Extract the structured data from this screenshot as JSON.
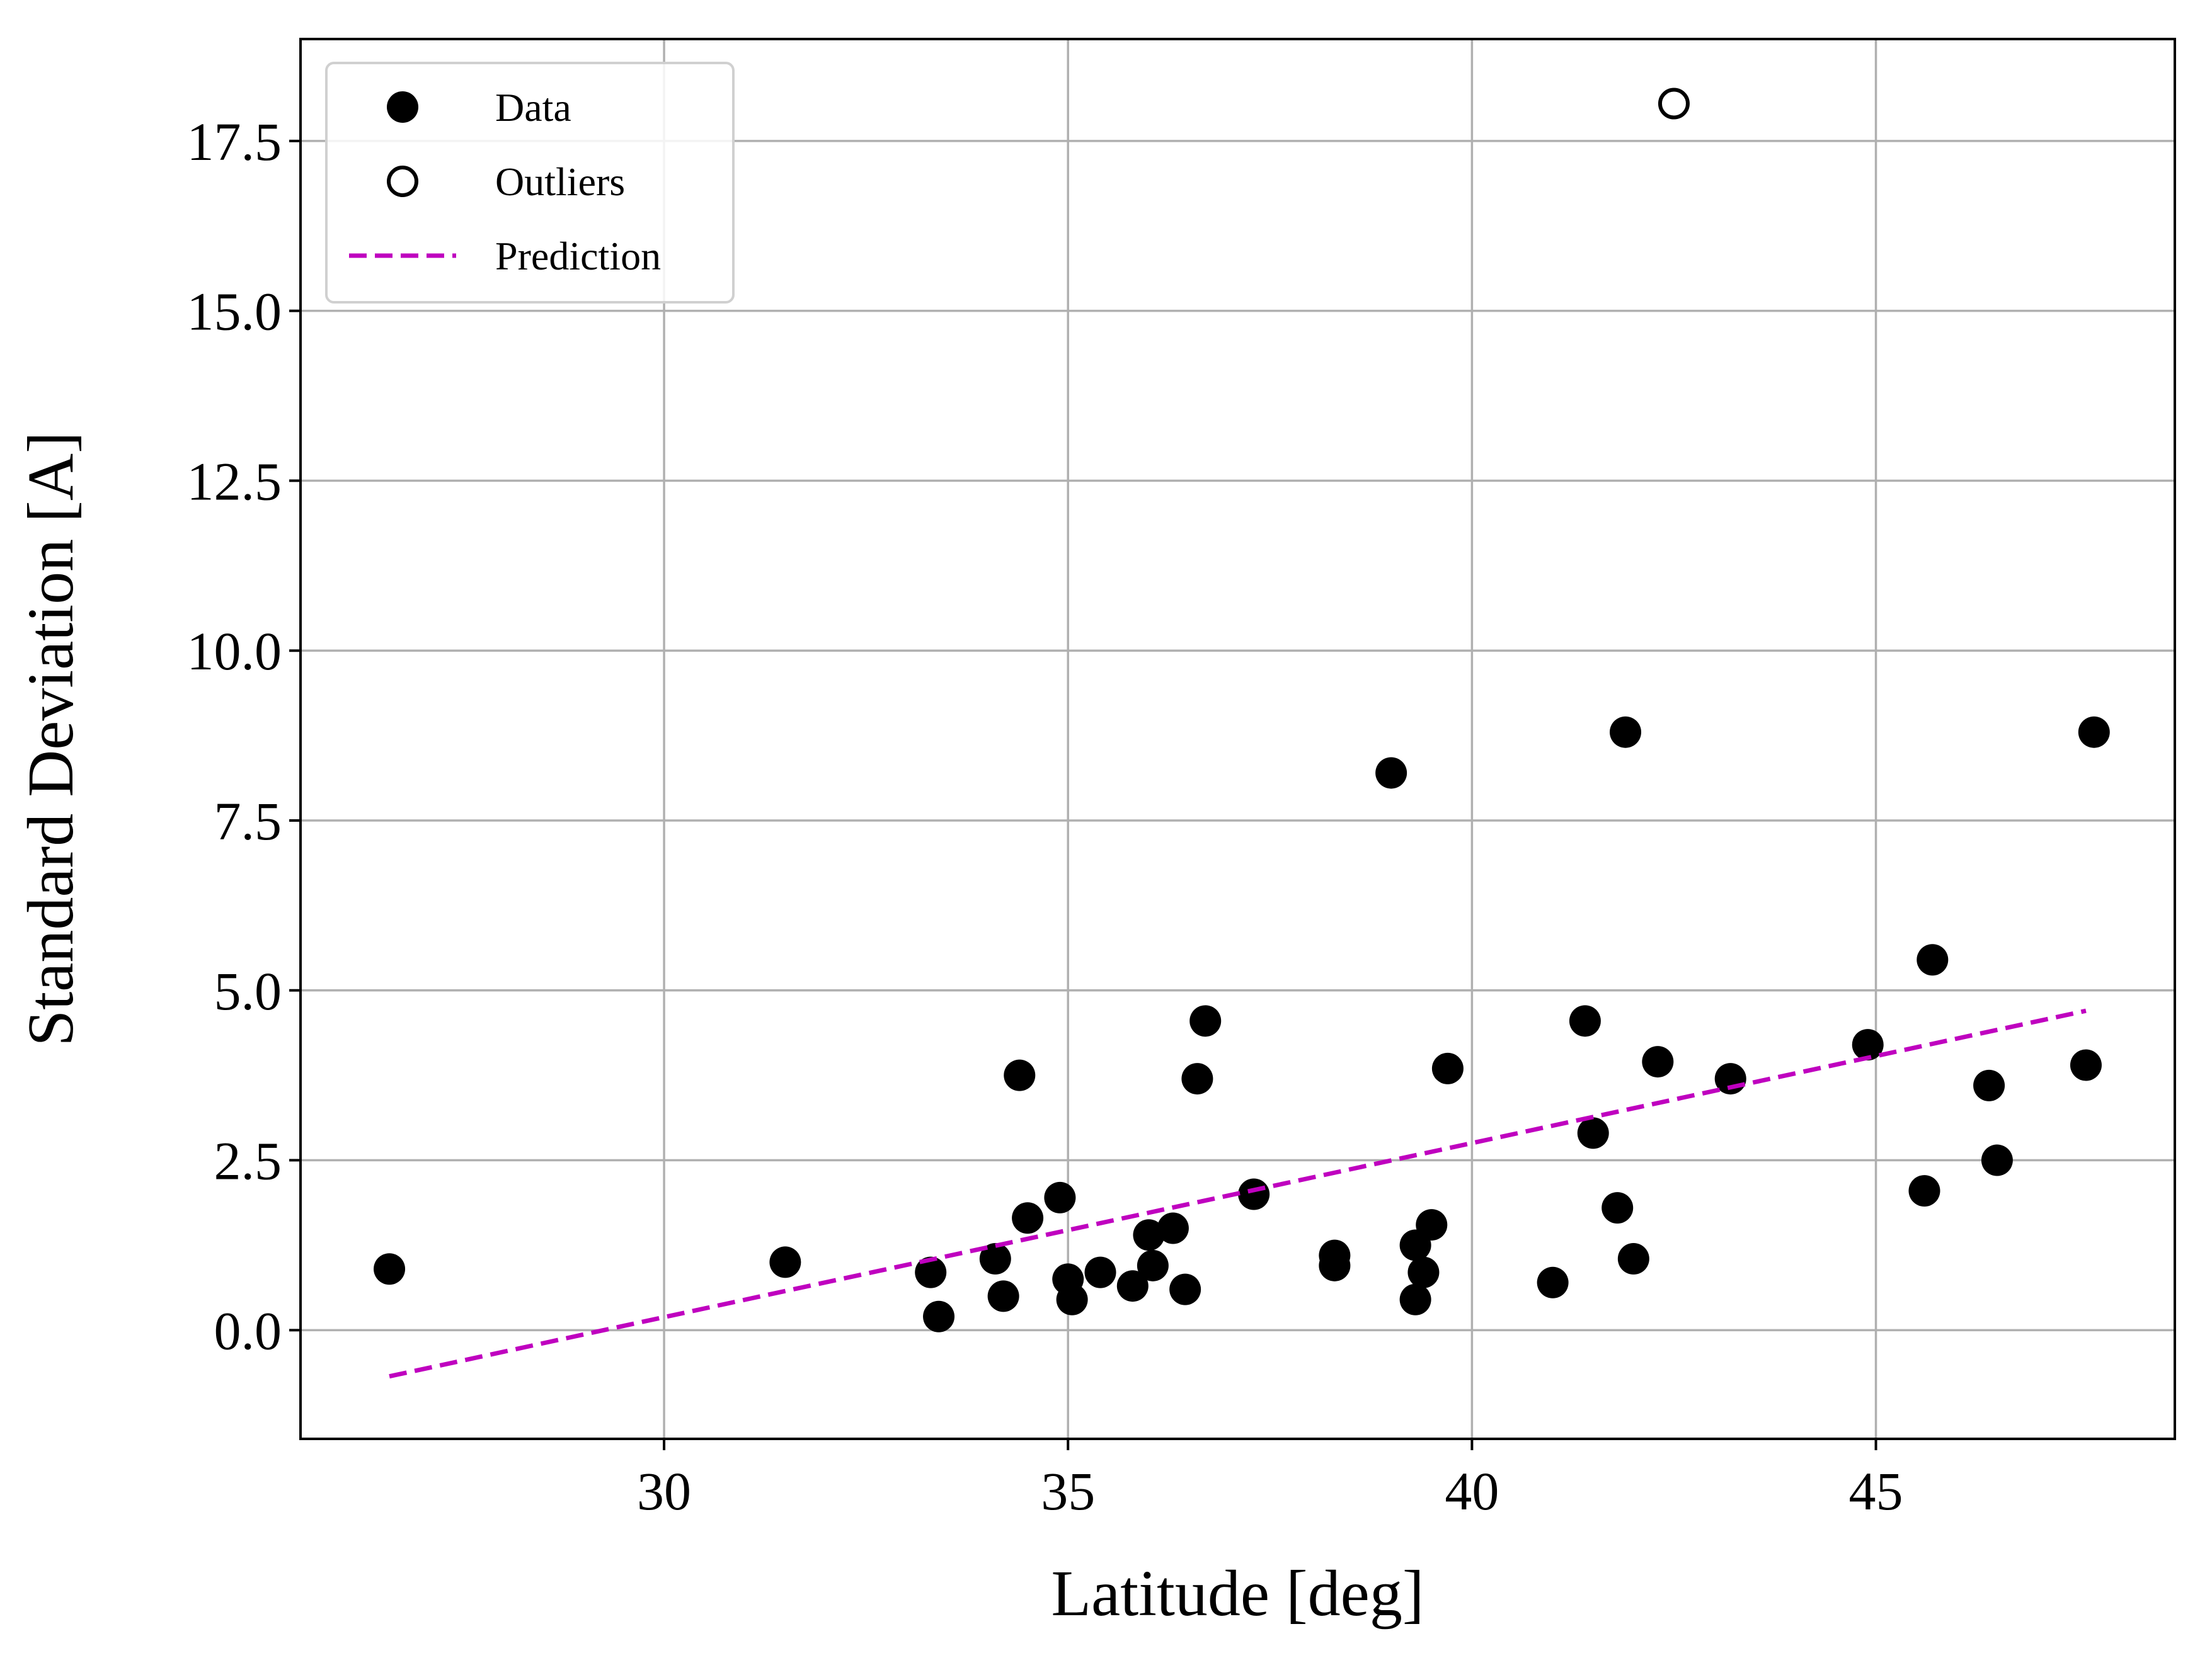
{
  "chart_data": {
    "type": "scatter",
    "title": "",
    "xlabel": "Latitude [deg]",
    "ylabel": "Standard Deviation [A]",
    "xlim": [
      25.5,
      48.7
    ],
    "ylim": [
      -1.6,
      19.0
    ],
    "xticks": [
      30,
      35,
      40,
      45
    ],
    "xtick_labels": [
      "30",
      "35",
      "40",
      "45"
    ],
    "yticks": [
      0.0,
      2.5,
      5.0,
      7.5,
      10.0,
      12.5,
      15.0,
      17.5
    ],
    "ytick_labels": [
      "0.0",
      "2.5",
      "5.0",
      "7.5",
      "10.0",
      "12.5",
      "15.0",
      "17.5"
    ],
    "grid": true,
    "legend_position": "top-left",
    "series": [
      {
        "name": "Data",
        "kind": "scatter",
        "marker": "filled-circle",
        "color": "#000000",
        "points": [
          [
            26.6,
            0.9
          ],
          [
            31.5,
            1.0
          ],
          [
            33.3,
            0.85
          ],
          [
            33.4,
            0.2
          ],
          [
            34.1,
            1.05
          ],
          [
            34.2,
            0.5
          ],
          [
            34.4,
            3.75
          ],
          [
            34.5,
            1.65
          ],
          [
            34.9,
            1.95
          ],
          [
            35.0,
            0.75
          ],
          [
            35.05,
            0.45
          ],
          [
            35.4,
            0.85
          ],
          [
            35.8,
            0.65
          ],
          [
            36.0,
            1.4
          ],
          [
            36.05,
            0.95
          ],
          [
            36.3,
            1.5
          ],
          [
            36.45,
            0.6
          ],
          [
            36.6,
            3.7
          ],
          [
            36.7,
            4.55
          ],
          [
            37.3,
            2.0
          ],
          [
            38.3,
            1.1
          ],
          [
            38.3,
            0.95
          ],
          [
            39.0,
            8.2
          ],
          [
            39.3,
            1.25
          ],
          [
            39.3,
            0.45
          ],
          [
            39.4,
            0.85
          ],
          [
            39.5,
            1.55
          ],
          [
            39.7,
            3.85
          ],
          [
            41.0,
            0.7
          ],
          [
            41.4,
            4.55
          ],
          [
            41.5,
            2.9
          ],
          [
            41.8,
            1.8
          ],
          [
            41.9,
            8.8
          ],
          [
            42.0,
            1.05
          ],
          [
            42.3,
            3.95
          ],
          [
            43.2,
            3.7
          ],
          [
            44.9,
            4.2
          ],
          [
            45.6,
            2.05
          ],
          [
            45.7,
            5.45
          ],
          [
            46.4,
            3.6
          ],
          [
            46.5,
            2.5
          ],
          [
            47.6,
            3.9
          ],
          [
            47.7,
            8.8
          ]
        ]
      },
      {
        "name": "Outliers",
        "kind": "scatter",
        "marker": "open-circle",
        "color": "#000000",
        "points": [
          [
            42.5,
            18.05
          ]
        ]
      },
      {
        "name": "Prediction",
        "kind": "line",
        "style": "dashed",
        "color": "#bf00bf",
        "points": [
          [
            26.6,
            -0.68
          ],
          [
            47.6,
            4.7
          ]
        ]
      }
    ]
  }
}
